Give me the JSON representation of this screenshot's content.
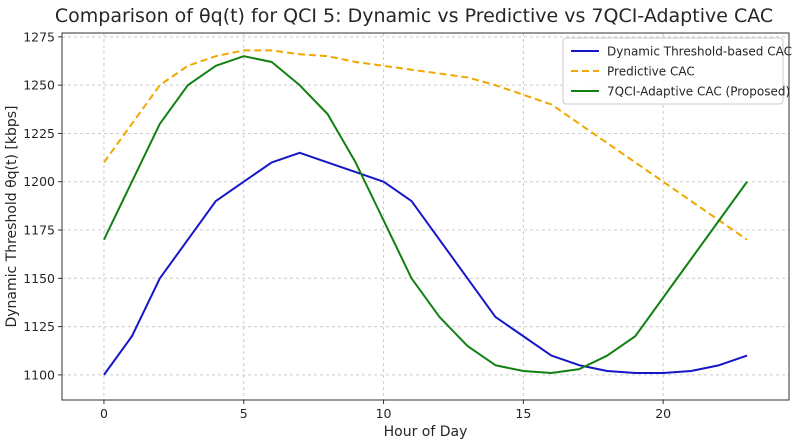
{
  "chart_data": {
    "type": "line",
    "title": "Comparison of θq(t) for QCI 5: Dynamic vs Predictive vs 7QCI-Adaptive CAC",
    "xlabel": "Hour of Day",
    "ylabel": "Dynamic Threshold θq(t) [kbps]",
    "xlim": [
      -1.5,
      24.5
    ],
    "ylim": [
      1087,
      1277
    ],
    "xticks": [
      0,
      5,
      10,
      15,
      20
    ],
    "yticks": [
      1100,
      1125,
      1150,
      1175,
      1200,
      1225,
      1250,
      1275
    ],
    "grid": true,
    "legend_position": "top-right",
    "x": [
      0,
      1,
      2,
      3,
      4,
      5,
      6,
      7,
      8,
      9,
      10,
      11,
      12,
      13,
      14,
      15,
      16,
      17,
      18,
      19,
      20,
      21,
      22,
      23
    ],
    "series": [
      {
        "name": "Dynamic Threshold-based CAC",
        "color": "#1616c8",
        "dash": "solid",
        "values": [
          1100,
          1120,
          1150,
          1170,
          1190,
          1200,
          1210,
          1215,
          1210,
          1205,
          1200,
          1190,
          1170,
          1150,
          1130,
          1120,
          1110,
          1105,
          1102,
          1101,
          1101,
          1102,
          1105,
          1110
        ]
      },
      {
        "name": "Predictive CAC",
        "color": "#f0a800",
        "dash": "dashed",
        "values": [
          1210,
          1230,
          1250,
          1260,
          1265,
          1268,
          1268,
          1266,
          1265,
          1262,
          1260,
          1258,
          1256,
          1254,
          1250,
          1245,
          1240,
          1230,
          1220,
          1210,
          1200,
          1190,
          1180,
          1170
        ]
      },
      {
        "name": "7QCI-Adaptive CAC (Proposed)",
        "color": "#128012",
        "dash": "solid",
        "values": [
          1170,
          1200,
          1230,
          1250,
          1260,
          1265,
          1262,
          1250,
          1235,
          1210,
          1180,
          1150,
          1130,
          1115,
          1105,
          1102,
          1101,
          1103,
          1110,
          1120,
          1140,
          1160,
          1180,
          1200
        ]
      }
    ]
  }
}
